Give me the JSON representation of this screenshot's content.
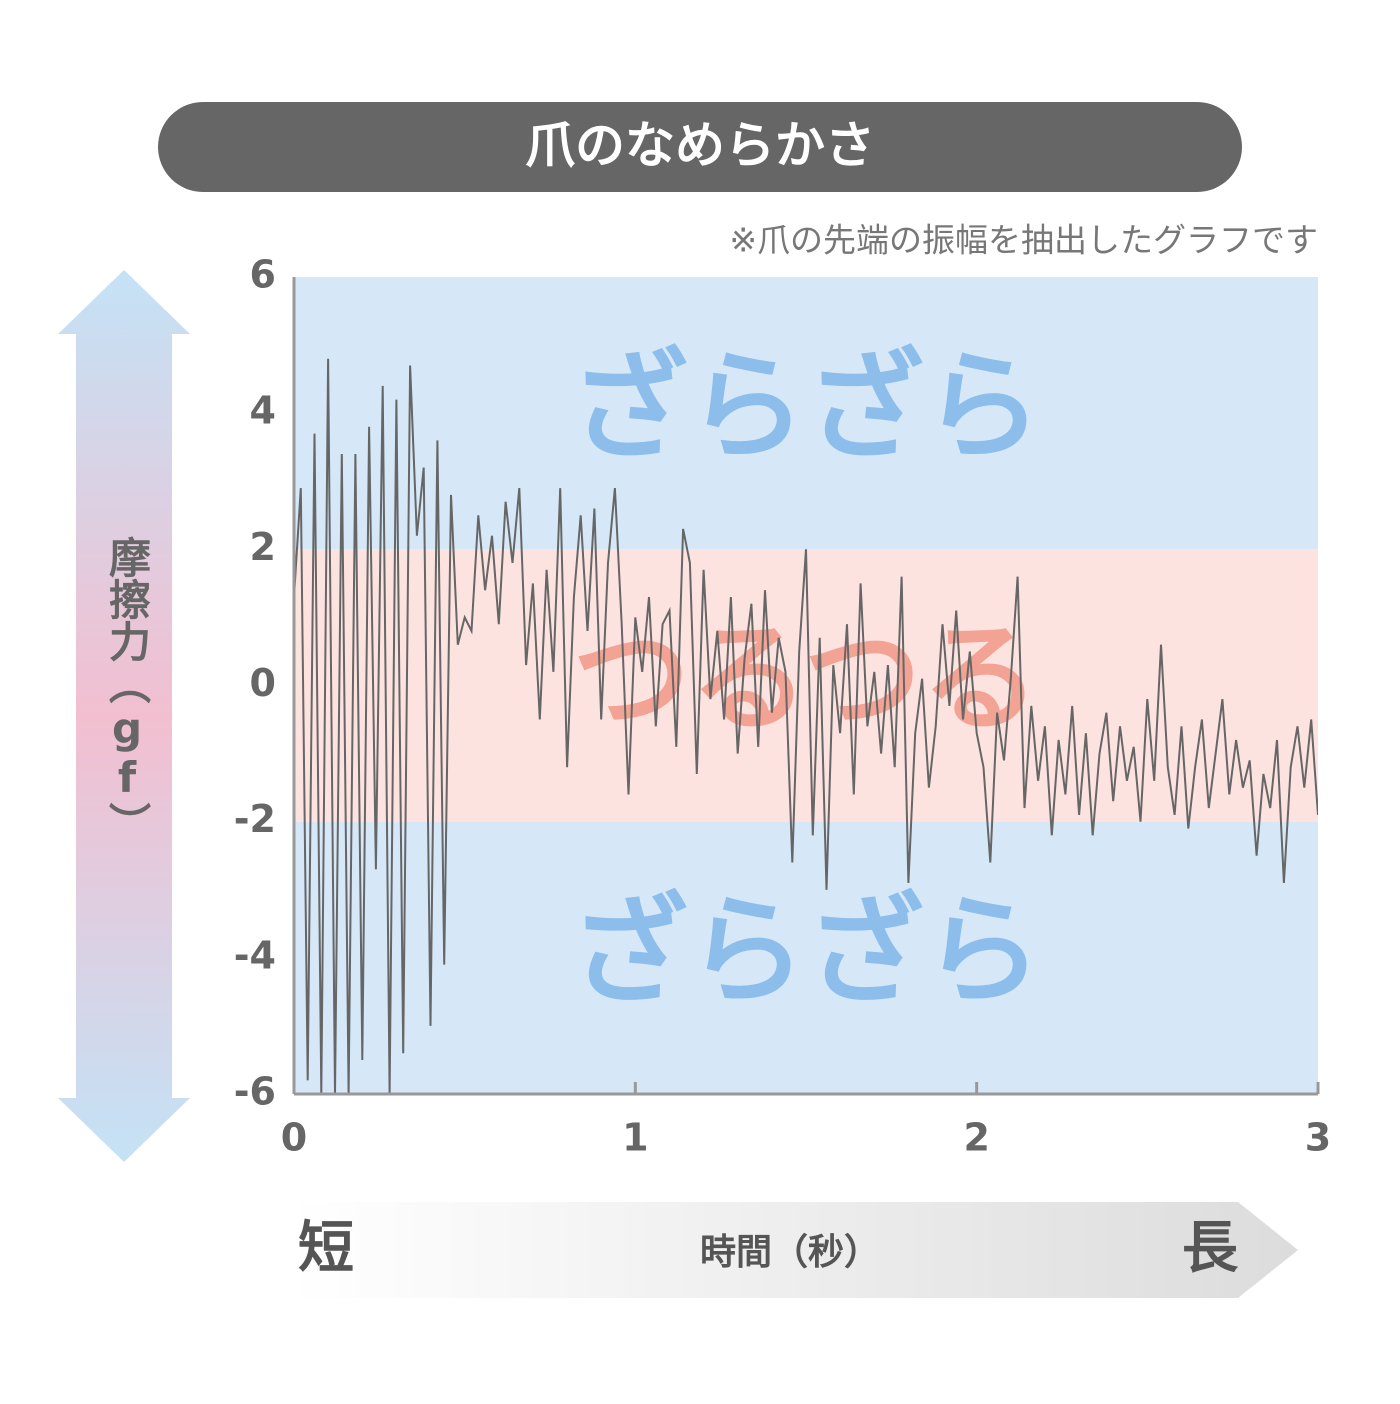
{
  "chart_data": {
    "type": "line",
    "title": "爪のなめらかさ",
    "subtitle": "※爪の先端の振幅を抽出したグラフです",
    "ylabel": "摩擦力（gf）",
    "xlabel": "時間（秒）",
    "x_start_label": "短",
    "x_end_label": "長",
    "xlim": [
      0,
      3
    ],
    "ylim": [
      -6,
      6
    ],
    "xticks": [
      0,
      1,
      2,
      3
    ],
    "yticks": [
      -6,
      -4,
      -2,
      0,
      2,
      4,
      6
    ],
    "bands": [
      {
        "from": 2,
        "to": 6,
        "label": "ざらざら",
        "color": "#d6e8f8",
        "label_color": "#8dbeeb"
      },
      {
        "from": -2,
        "to": 2,
        "label": "つるつる",
        "color": "#fde3e0",
        "label_color": "#f2a393"
      },
      {
        "from": -6,
        "to": -2,
        "label": "ざらざら",
        "color": "#d6e8f8",
        "label_color": "#8dbeeb"
      }
    ],
    "x": [
      0,
      0.02,
      0.04,
      0.06,
      0.08,
      0.1,
      0.12,
      0.14,
      0.16,
      0.18,
      0.2,
      0.22,
      0.24,
      0.26,
      0.28,
      0.3,
      0.32,
      0.34,
      0.36,
      0.38,
      0.4,
      0.42,
      0.44,
      0.46,
      0.48,
      0.5,
      0.52,
      0.54,
      0.56,
      0.58,
      0.6,
      0.62,
      0.64,
      0.66,
      0.68,
      0.7,
      0.72,
      0.74,
      0.76,
      0.78,
      0.8,
      0.82,
      0.84,
      0.86,
      0.88,
      0.9,
      0.92,
      0.94,
      0.96,
      0.98,
      1,
      1.02,
      1.04,
      1.06,
      1.08,
      1.1,
      1.12,
      1.14,
      1.16,
      1.18,
      1.2,
      1.22,
      1.24,
      1.26,
      1.28,
      1.3,
      1.32,
      1.34,
      1.36,
      1.38,
      1.4,
      1.42,
      1.44,
      1.46,
      1.48,
      1.5,
      1.52,
      1.54,
      1.56,
      1.58,
      1.6,
      1.62,
      1.64,
      1.66,
      1.68,
      1.7,
      1.72,
      1.74,
      1.76,
      1.78,
      1.8,
      1.82,
      1.84,
      1.86,
      1.88,
      1.9,
      1.92,
      1.94,
      1.96,
      1.98,
      2,
      2.02,
      2.04,
      2.06,
      2.08,
      2.1,
      2.12,
      2.14,
      2.16,
      2.18,
      2.2,
      2.22,
      2.24,
      2.26,
      2.28,
      2.3,
      2.32,
      2.34,
      2.36,
      2.38,
      2.4,
      2.42,
      2.44,
      2.46,
      2.48,
      2.5,
      2.52,
      2.54,
      2.56,
      2.58,
      2.6,
      2.62,
      2.64,
      2.66,
      2.68,
      2.7,
      2.72,
      2.74,
      2.76,
      2.78,
      2.8,
      2.82,
      2.84,
      2.86,
      2.88,
      2.9,
      2.92,
      2.94,
      2.96,
      2.98,
      3
    ],
    "series": [
      {
        "color": "#666666",
        "values": [
          1.3,
          2.9,
          -5.8,
          3.7,
          -6,
          4.8,
          -6,
          3.4,
          -6,
          3.4,
          -5.5,
          3.8,
          -2.7,
          4.4,
          -6,
          4.2,
          -5.4,
          4.7,
          2.2,
          3.2,
          -5,
          3.6,
          -4.1,
          2.8,
          0.6,
          1.0,
          0.8,
          2.5,
          1.4,
          2.2,
          0.9,
          2.7,
          1.8,
          2.9,
          0.3,
          1.5,
          -0.5,
          1.7,
          0.2,
          2.9,
          -1.2,
          1.3,
          2.5,
          0.8,
          2.6,
          -0.5,
          1.8,
          2.9,
          0.9,
          -1.6,
          1.0,
          0.2,
          1.3,
          -0.6,
          0.9,
          1.1,
          -0.9,
          2.3,
          1.8,
          -1.3,
          1.7,
          -0.2,
          0.8,
          -0.5,
          1.3,
          -1.0,
          0.4,
          1.2,
          -0.9,
          1.4,
          -0.4,
          0.7,
          0.2,
          -2.6,
          0.5,
          2.0,
          -2.2,
          0.7,
          -3.0,
          0.3,
          -0.7,
          0.9,
          -1.6,
          1.5,
          -0.6,
          0.2,
          -1.0,
          0.3,
          -1.2,
          1.6,
          -2.9,
          -0.7,
          0.1,
          -1.5,
          -0.6,
          0.9,
          -0.3,
          1.1,
          -0.5,
          0.5,
          -0.7,
          -1.2,
          -2.6,
          -0.4,
          -1.1,
          0.1,
          1.6,
          -1.8,
          -0.3,
          -1.4,
          -0.6,
          -2.2,
          -0.8,
          -1.6,
          -0.3,
          -1.9,
          -0.7,
          -2.2,
          -1.0,
          -0.4,
          -1.7,
          -0.6,
          -1.4,
          -0.9,
          -2.0,
          -0.2,
          -1.4,
          0.6,
          -1.2,
          -1.9,
          -0.6,
          -2.1,
          -1.2,
          -0.5,
          -1.8,
          -1.0,
          -0.2,
          -1.6,
          -0.8,
          -1.5,
          -1.1,
          -2.5,
          -1.3,
          -1.8,
          -0.8,
          -2.9,
          -1.2,
          -0.6,
          -1.5,
          -0.5,
          -1.9
        ]
      }
    ]
  }
}
